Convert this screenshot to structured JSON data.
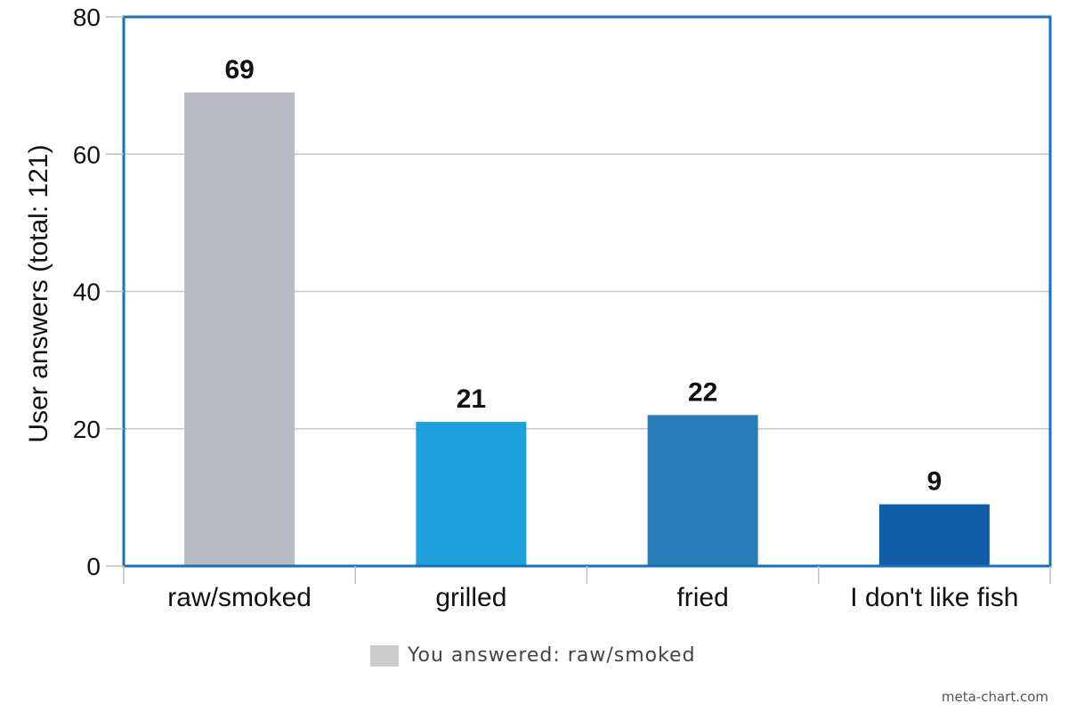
{
  "chart_data": {
    "type": "bar",
    "categories": [
      "raw/smoked",
      "grilled",
      "fried",
      "I don't like fish"
    ],
    "values": [
      69,
      21,
      22,
      9
    ],
    "bar_colors": [
      "#b9bcc3",
      "#1fa0dd",
      "#277cb5",
      "#125da8"
    ],
    "title": "",
    "xlabel": "",
    "ylabel": "User answers (total: 121)",
    "ylim": [
      0,
      80
    ],
    "yticks": [
      0,
      20,
      40,
      60,
      80
    ],
    "grid": true,
    "frame_color": "#1a70b8",
    "gridline_color": "#c8c8c8",
    "data_labels": true
  },
  "legend": {
    "label": "You answered: raw/smoked",
    "swatch_color": "#cccccc",
    "position": "bottom-center"
  },
  "credit": "meta-chart.com"
}
